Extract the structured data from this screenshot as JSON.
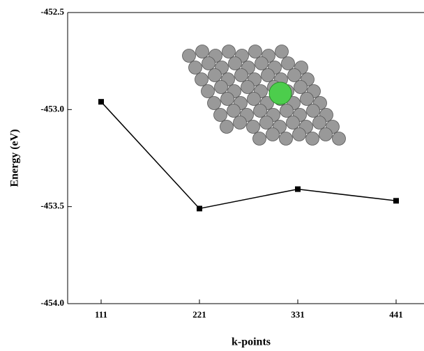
{
  "chart_data": {
    "type": "line",
    "x_label": "k-points",
    "y_label": "Energy (eV)",
    "categories": [
      "111",
      "221",
      "331",
      "441"
    ],
    "series": [
      {
        "color": "#000000",
        "values": [
          -452.96,
          -453.51,
          -453.41,
          -453.47
        ]
      }
    ],
    "ylim": [
      -454.0,
      -452.5
    ],
    "yticks": [
      {
        "value": -454.0,
        "label": "-454.0"
      },
      {
        "value": -453.5,
        "label": "-453.5"
      },
      {
        "value": -453.0,
        "label": "-453.0"
      },
      {
        "value": -452.5,
        "label": "-452.5"
      }
    ]
  }
}
